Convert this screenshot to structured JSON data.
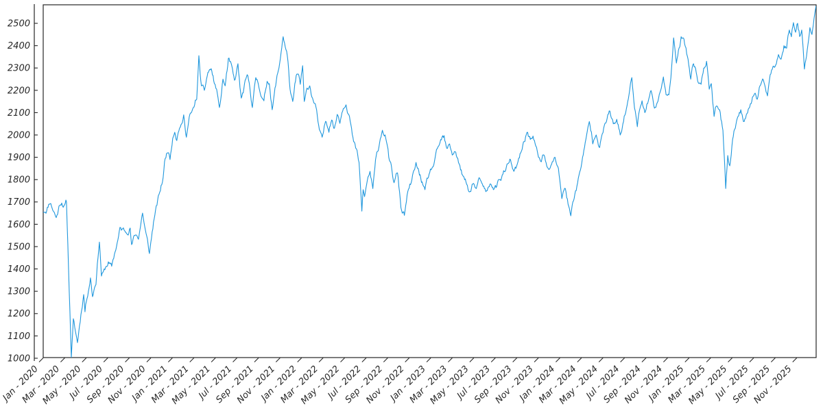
{
  "figure": {
    "background": "#ffffff",
    "spine_color": "#262626",
    "tick_label_color": "#262626"
  },
  "chart_data": {
    "type": "line",
    "title": "",
    "xlabel": "",
    "ylabel": "",
    "grid": false,
    "legend": false,
    "x_unit": "months since Jan 2020",
    "xlim": [
      0,
      71.8
    ],
    "ylim": [
      1003,
      2583
    ],
    "x_tick_positions": [
      0,
      2,
      4,
      6,
      8,
      10,
      12,
      14,
      16,
      18,
      20,
      22,
      24,
      26,
      28,
      30,
      32,
      34,
      36,
      38,
      40,
      42,
      44,
      46,
      48,
      50,
      52,
      54,
      56,
      58,
      60,
      62,
      64,
      66,
      68,
      70
    ],
    "x_tick_labels": [
      "Jan - 2020",
      "Mar - 2020",
      "May - 2020",
      "Jul - 2020",
      "Sep - 2020",
      "Nov - 2020",
      "Jan - 2021",
      "Mar - 2021",
      "May - 2021",
      "Jul - 2021",
      "Sep - 2021",
      "Nov - 2021",
      "Jan - 2022",
      "Mar - 2022",
      "May - 2022",
      "Jul - 2022",
      "Sep - 2022",
      "Nov - 2022",
      "Jan - 2023",
      "Mar - 2023",
      "May - 2023",
      "Jul - 2023",
      "Sep - 2023",
      "Nov - 2023",
      "Jan - 2024",
      "Mar - 2024",
      "May - 2024",
      "Jul - 2024",
      "Sep - 2024",
      "Nov - 2024",
      "Jan - 2025",
      "Mar - 2025",
      "May - 2025",
      "Jul - 2025",
      "Sep - 2025",
      "Nov - 2025"
    ],
    "y_ticks": [
      1000,
      1100,
      1200,
      1300,
      1400,
      1500,
      1600,
      1700,
      1800,
      1900,
      2000,
      2100,
      2200,
      2300,
      2400,
      2500
    ],
    "series": [
      {
        "name": "value",
        "color": "#1E96DC",
        "points": [
          [
            0,
            1655
          ],
          [
            0.32,
            1659
          ],
          [
            0.64,
            1692
          ],
          [
            1.08,
            1646
          ],
          [
            1.21,
            1630
          ],
          [
            1.53,
            1684
          ],
          [
            1.72,
            1695
          ],
          [
            2,
            1688
          ],
          [
            2.16,
            1700
          ],
          [
            2.61,
            1004
          ],
          [
            2.8,
            1177
          ],
          [
            3.18,
            1070
          ],
          [
            3.76,
            1285
          ],
          [
            3.88,
            1208
          ],
          [
            4.39,
            1360
          ],
          [
            4.58,
            1276
          ],
          [
            4.9,
            1330
          ],
          [
            5.22,
            1520
          ],
          [
            5.41,
            1368
          ],
          [
            5.66,
            1400
          ],
          [
            6.05,
            1432
          ],
          [
            6.36,
            1412
          ],
          [
            6.81,
            1500
          ],
          [
            7.13,
            1586
          ],
          [
            7.64,
            1565
          ],
          [
            8.08,
            1583
          ],
          [
            8.21,
            1509
          ],
          [
            8.53,
            1550
          ],
          [
            8.85,
            1533
          ],
          [
            9.23,
            1650
          ],
          [
            9.55,
            1560
          ],
          [
            9.87,
            1469
          ],
          [
            10.31,
            1625
          ],
          [
            10.63,
            1708
          ],
          [
            11.08,
            1790
          ],
          [
            11.27,
            1880
          ],
          [
            11.58,
            1920
          ],
          [
            11.78,
            1890
          ],
          [
            12.03,
            1985
          ],
          [
            12.22,
            2012
          ],
          [
            12.41,
            1975
          ],
          [
            12.67,
            2031
          ],
          [
            12.86,
            2050
          ],
          [
            13.05,
            2090
          ],
          [
            13.3,
            1990
          ],
          [
            13.56,
            2080
          ],
          [
            13.94,
            2123
          ],
          [
            14.26,
            2160
          ],
          [
            14.46,
            2355
          ],
          [
            14.7,
            2220
          ],
          [
            14.97,
            2200
          ],
          [
            15.3,
            2280
          ],
          [
            15.6,
            2297
          ],
          [
            15.9,
            2230
          ],
          [
            16.18,
            2184
          ],
          [
            16.37,
            2123
          ],
          [
            16.7,
            2250
          ],
          [
            16.9,
            2220
          ],
          [
            17.2,
            2343
          ],
          [
            17.45,
            2322
          ],
          [
            17.77,
            2245
          ],
          [
            18.09,
            2319
          ],
          [
            18.4,
            2165
          ],
          [
            18.7,
            2230
          ],
          [
            18.95,
            2270
          ],
          [
            19.2,
            2210
          ],
          [
            19.43,
            2123
          ],
          [
            19.75,
            2257
          ],
          [
            20.1,
            2200
          ],
          [
            20.5,
            2153
          ],
          [
            20.8,
            2240
          ],
          [
            21,
            2230
          ],
          [
            21.27,
            2113
          ],
          [
            21.66,
            2245
          ],
          [
            21.9,
            2300
          ],
          [
            22.29,
            2440
          ],
          [
            22.74,
            2328
          ],
          [
            22.93,
            2205
          ],
          [
            23.18,
            2150
          ],
          [
            23.5,
            2266
          ],
          [
            23.69,
            2273
          ],
          [
            23.88,
            2227
          ],
          [
            24.1,
            2310
          ],
          [
            24.25,
            2150
          ],
          [
            24.51,
            2210
          ],
          [
            24.76,
            2220
          ],
          [
            25.02,
            2165
          ],
          [
            25.27,
            2140
          ],
          [
            25.59,
            2043
          ],
          [
            25.91,
            1990
          ],
          [
            26.23,
            2061
          ],
          [
            26.54,
            2012
          ],
          [
            26.8,
            2067
          ],
          [
            27.05,
            2030
          ],
          [
            27.31,
            2092
          ],
          [
            27.56,
            2052
          ],
          [
            27.82,
            2107
          ],
          [
            28.13,
            2135
          ],
          [
            28.45,
            2083
          ],
          [
            28.77,
            1990
          ],
          [
            29.09,
            1938
          ],
          [
            29.34,
            1877
          ],
          [
            29.6,
            1659
          ],
          [
            29.72,
            1755
          ],
          [
            29.85,
            1724
          ],
          [
            30.11,
            1797
          ],
          [
            30.36,
            1837
          ],
          [
            30.62,
            1760
          ],
          [
            30.87,
            1889
          ],
          [
            31.12,
            1929
          ],
          [
            31.51,
            2021
          ],
          [
            31.82,
            1985
          ],
          [
            32.1,
            1900
          ],
          [
            32.4,
            1840
          ],
          [
            32.59,
            1786
          ],
          [
            32.91,
            1830
          ],
          [
            33.23,
            1674
          ],
          [
            33.55,
            1640
          ],
          [
            33.8,
            1730
          ],
          [
            34.06,
            1780
          ],
          [
            34.31,
            1820
          ],
          [
            34.63,
            1877
          ],
          [
            34.95,
            1820
          ],
          [
            35.2,
            1790
          ],
          [
            35.46,
            1755
          ],
          [
            35.78,
            1810
          ],
          [
            36.1,
            1850
          ],
          [
            36.41,
            1900
          ],
          [
            36.73,
            1950
          ],
          [
            37.05,
            1990
          ],
          [
            37.24,
            1997
          ],
          [
            37.49,
            1940
          ],
          [
            37.75,
            1960
          ],
          [
            38,
            1910
          ],
          [
            38.32,
            1923
          ],
          [
            38.64,
            1870
          ],
          [
            38.96,
            1820
          ],
          [
            39.27,
            1790
          ],
          [
            39.59,
            1745
          ],
          [
            39.91,
            1780
          ],
          [
            40.23,
            1760
          ],
          [
            40.55,
            1806
          ],
          [
            40.86,
            1770
          ],
          [
            41.18,
            1750
          ],
          [
            41.5,
            1780
          ],
          [
            41.82,
            1755
          ],
          [
            42.13,
            1770
          ],
          [
            42.45,
            1800
          ],
          [
            42.77,
            1840
          ],
          [
            43.09,
            1870
          ],
          [
            43.41,
            1889
          ],
          [
            43.72,
            1837
          ],
          [
            44.04,
            1870
          ],
          [
            44.36,
            1920
          ],
          [
            44.68,
            1970
          ],
          [
            45,
            2012
          ],
          [
            45.25,
            1980
          ],
          [
            45.5,
            1995
          ],
          [
            45.76,
            1950
          ],
          [
            46.01,
            1900
          ],
          [
            46.27,
            1880
          ],
          [
            46.52,
            1910
          ],
          [
            46.78,
            1860
          ],
          [
            47.03,
            1847
          ],
          [
            47.29,
            1880
          ],
          [
            47.54,
            1900
          ],
          [
            47.86,
            1850
          ],
          [
            48.18,
            1715
          ],
          [
            48.5,
            1760
          ],
          [
            48.82,
            1680
          ],
          [
            49.01,
            1638
          ],
          [
            49.2,
            1700
          ],
          [
            49.45,
            1750
          ],
          [
            49.77,
            1820
          ],
          [
            50.1,
            1900
          ],
          [
            50.41,
            1980
          ],
          [
            50.73,
            2060
          ],
          [
            51.05,
            1960
          ],
          [
            51.37,
            2000
          ],
          [
            51.69,
            1944
          ],
          [
            52,
            2010
          ],
          [
            52.32,
            2060
          ],
          [
            52.64,
            2107
          ],
          [
            52.96,
            2050
          ],
          [
            53.28,
            2070
          ],
          [
            53.6,
            2000
          ],
          [
            53.91,
            2060
          ],
          [
            54.23,
            2130
          ],
          [
            54.55,
            2230
          ],
          [
            54.68,
            2257
          ],
          [
            54.93,
            2120
          ],
          [
            55.19,
            2037
          ],
          [
            55.44,
            2120
          ],
          [
            55.63,
            2153
          ],
          [
            55.89,
            2100
          ],
          [
            56.14,
            2140
          ],
          [
            56.46,
            2199
          ],
          [
            56.78,
            2120
          ],
          [
            57.1,
            2150
          ],
          [
            57.42,
            2210
          ],
          [
            57.61,
            2260
          ],
          [
            57.86,
            2180
          ],
          [
            58.12,
            2180
          ],
          [
            58.37,
            2300
          ],
          [
            58.56,
            2435
          ],
          [
            58.82,
            2322
          ],
          [
            59.01,
            2380
          ],
          [
            59.26,
            2440
          ],
          [
            59.52,
            2430
          ],
          [
            59.71,
            2390
          ],
          [
            59.9,
            2340
          ],
          [
            60.15,
            2250
          ],
          [
            60.41,
            2319
          ],
          [
            60.66,
            2280
          ],
          [
            60.92,
            2230
          ],
          [
            61.11,
            2227
          ],
          [
            61.36,
            2300
          ],
          [
            61.62,
            2330
          ],
          [
            61.87,
            2205
          ],
          [
            62.06,
            2230
          ],
          [
            62.32,
            2083
          ],
          [
            62.57,
            2130
          ],
          [
            62.83,
            2113
          ],
          [
            63.02,
            2060
          ],
          [
            63.14,
            2021
          ],
          [
            63.27,
            1900
          ],
          [
            63.4,
            1760
          ],
          [
            63.59,
            1908
          ],
          [
            63.78,
            1862
          ],
          [
            64.04,
            1980
          ],
          [
            64.29,
            2030
          ],
          [
            64.54,
            2083
          ],
          [
            64.8,
            2113
          ],
          [
            65.05,
            2060
          ],
          [
            65.31,
            2090
          ],
          [
            65.56,
            2120
          ],
          [
            65.82,
            2150
          ],
          [
            66.07,
            2184
          ],
          [
            66.33,
            2160
          ],
          [
            66.58,
            2220
          ],
          [
            66.83,
            2251
          ],
          [
            67.09,
            2210
          ],
          [
            67.28,
            2175
          ],
          [
            67.53,
            2270
          ],
          [
            67.79,
            2307
          ],
          [
            68.04,
            2313
          ],
          [
            68.3,
            2360
          ],
          [
            68.55,
            2340
          ],
          [
            68.81,
            2400
          ],
          [
            69.06,
            2389
          ],
          [
            69.31,
            2470
          ],
          [
            69.5,
            2440
          ],
          [
            69.69,
            2503
          ],
          [
            69.89,
            2460
          ],
          [
            70.08,
            2500
          ],
          [
            70.27,
            2441
          ],
          [
            70.46,
            2470
          ],
          [
            70.71,
            2295
          ],
          [
            70.97,
            2380
          ],
          [
            71.22,
            2481
          ],
          [
            71.41,
            2450
          ],
          [
            71.6,
            2520
          ],
          [
            71.79,
            2578
          ]
        ]
      }
    ],
    "noise_texture": {
      "points_per_month": 16,
      "volatility": 13,
      "seed": 11
    }
  }
}
